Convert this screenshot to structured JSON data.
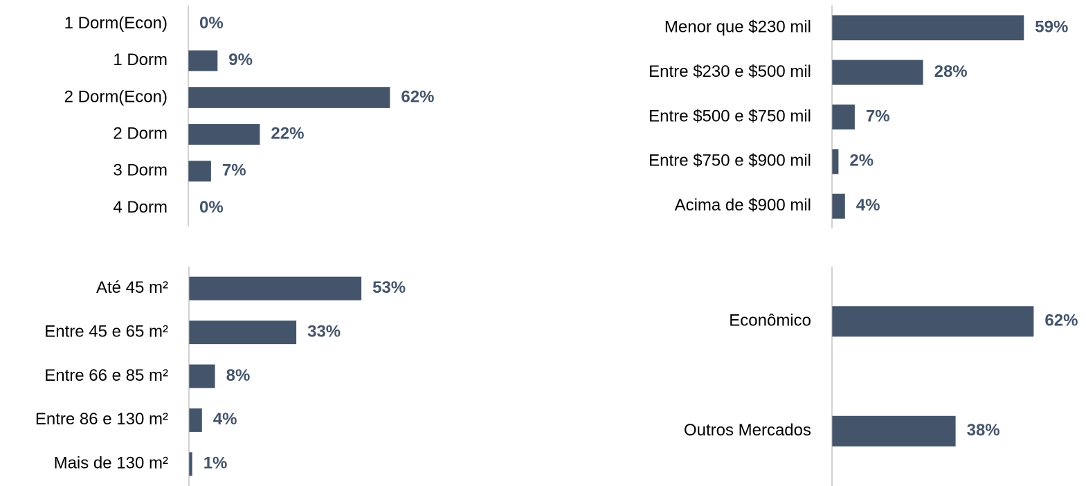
{
  "chart_data": [
    {
      "type": "bar",
      "orientation": "horizontal",
      "color": "#44546a",
      "xlim": [
        0,
        100
      ],
      "categories": [
        "1 Dorm(Econ)",
        "1 Dorm",
        "2 Dorm(Econ)",
        "2 Dorm",
        "3 Dorm",
        "4 Dorm"
      ],
      "values": [
        0,
        9,
        62,
        22,
        7,
        0
      ],
      "value_labels": [
        "0%",
        "9%",
        "62%",
        "22%",
        "7%",
        "0%"
      ]
    },
    {
      "type": "bar",
      "orientation": "horizontal",
      "color": "#44546a",
      "xlim": [
        0,
        100
      ],
      "categories": [
        "Menor que $230 mil",
        "Entre $230 e $500 mil",
        "Entre $500 e $750 mil",
        "Entre $750 e $900 mil",
        "Acima de $900 mil"
      ],
      "values": [
        59,
        28,
        7,
        2,
        4
      ],
      "value_labels": [
        "59%",
        "28%",
        "7%",
        "2%",
        "4%"
      ]
    },
    {
      "type": "bar",
      "orientation": "horizontal",
      "color": "#44546a",
      "xlim": [
        0,
        100
      ],
      "categories": [
        "Até 45 m²",
        "Entre 45 e 65 m²",
        "Entre 66 e 85 m²",
        "Entre 86 e 130 m²",
        "Mais de 130 m²"
      ],
      "values": [
        53,
        33,
        8,
        4,
        1
      ],
      "value_labels": [
        "53%",
        "33%",
        "8%",
        "4%",
        "1%"
      ]
    },
    {
      "type": "bar",
      "orientation": "horizontal",
      "color": "#44546a",
      "xlim": [
        0,
        100
      ],
      "categories": [
        "Econômico",
        "Outros Mercados"
      ],
      "values": [
        62,
        38
      ],
      "value_labels": [
        "62%",
        "38%"
      ]
    }
  ]
}
